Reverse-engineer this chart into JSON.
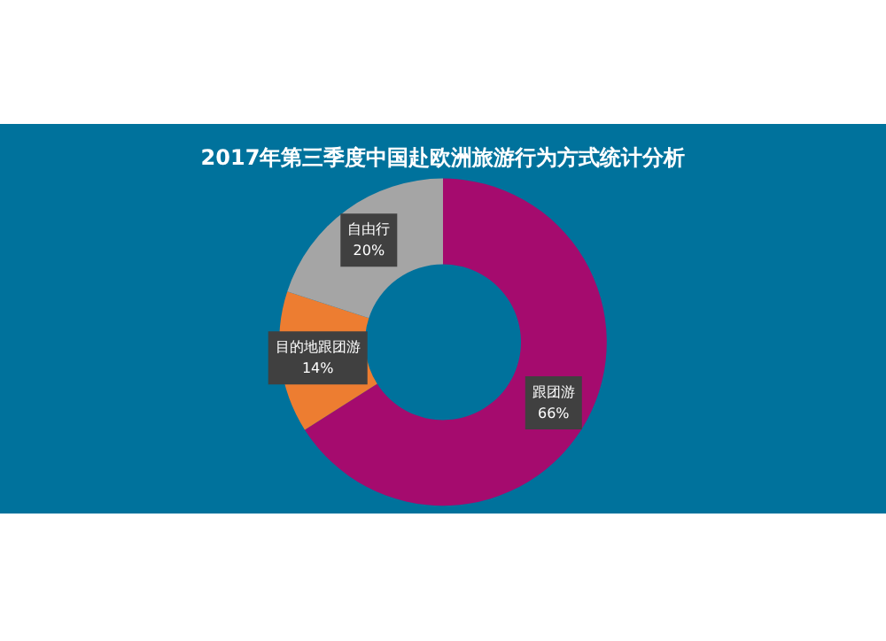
{
  "chart_data": {
    "type": "donut",
    "title": "2017年第三季度中国赴欧洲旅游行为方式统计分析",
    "categories": [
      "跟团游",
      "目的地跟团游",
      "自由行"
    ],
    "values": [
      66,
      14,
      20
    ],
    "value_labels": [
      "66%",
      "14%",
      "20%"
    ],
    "colors": [
      "#a50b6e",
      "#ed7d31",
      "#a5a5a5"
    ],
    "legend": false
  }
}
